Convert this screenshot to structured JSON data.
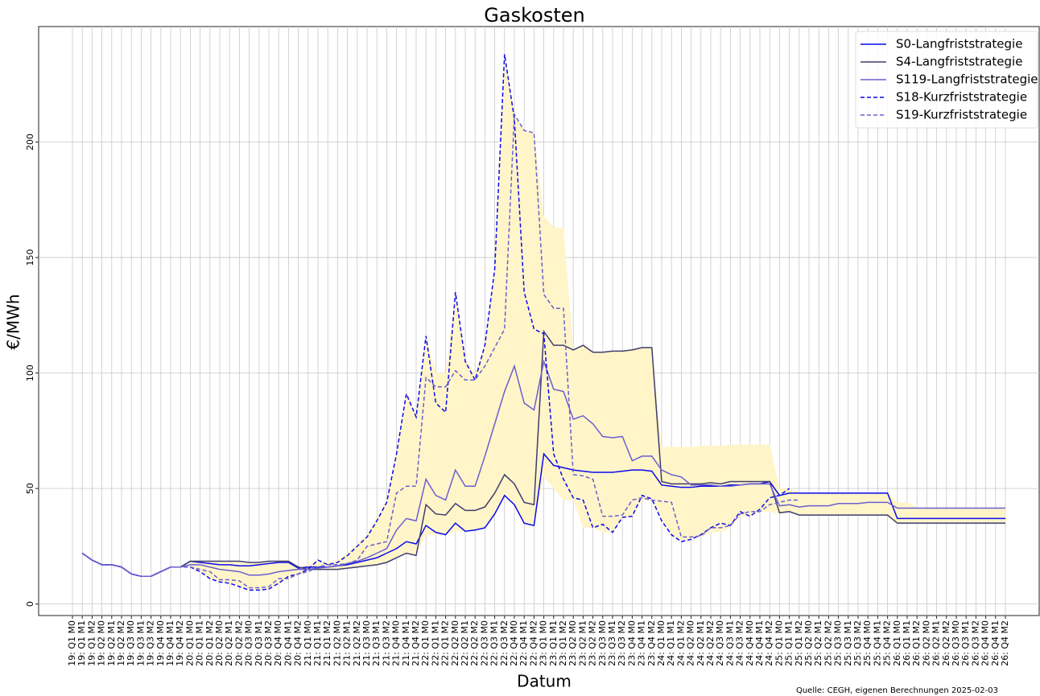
{
  "chart_data": {
    "type": "line",
    "title": "Gaskosten",
    "x_label": "Datum",
    "y_label": "€/MWh",
    "source": "Quelle: CEGH, eigenen Berechnungen 2025-02-03",
    "legend": "upper right",
    "grid": true,
    "ylim": [
      -5,
      250
    ],
    "yticks": [
      0,
      50,
      100,
      150,
      200
    ],
    "categories": [
      "19: Q1 M0",
      "19: Q1 M1",
      "19: Q1 M2",
      "19: Q2 M0",
      "19: Q2 M1",
      "19: Q2 M2",
      "19: Q3 M0",
      "19: Q3 M1",
      "19: Q3 M2",
      "19: Q4 M0",
      "19: Q4 M1",
      "19: Q4 M2",
      "20: Q1 M0",
      "20: Q1 M1",
      "20: Q1 M2",
      "20: Q2 M0",
      "20: Q2 M1",
      "20: Q2 M2",
      "20: Q3 M0",
      "20: Q3 M1",
      "20: Q3 M2",
      "20: Q4 M0",
      "20: Q4 M1",
      "20: Q4 M2",
      "21: Q1 M0",
      "21: Q1 M1",
      "21: Q1 M2",
      "21: Q2 M0",
      "21: Q2 M1",
      "21: Q2 M2",
      "21: Q3 M0",
      "21: Q3 M1",
      "21: Q3 M2",
      "21: Q4 M0",
      "21: Q4 M1",
      "21: Q4 M2",
      "22: Q1 M0",
      "22: Q1 M1",
      "22: Q1 M2",
      "22: Q2 M0",
      "22: Q2 M1",
      "22: Q2 M2",
      "22: Q3 M0",
      "22: Q3 M1",
      "22: Q3 M2",
      "22: Q4 M0",
      "22: Q4 M1",
      "22: Q4 M2",
      "23: Q1 M0",
      "23: Q1 M1",
      "23: Q1 M2",
      "23: Q2 M0",
      "23: Q2 M1",
      "23: Q2 M2",
      "23: Q3 M0",
      "23: Q3 M1",
      "23: Q3 M2",
      "23: Q4 M0",
      "23: Q4 M1",
      "23: Q4 M2",
      "24: Q1 M0",
      "24: Q1 M1",
      "24: Q1 M2",
      "24: Q2 M0",
      "24: Q2 M1",
      "24: Q2 M2",
      "24: Q3 M0",
      "24: Q3 M1",
      "24: Q3 M2",
      "24: Q4 M0",
      "24: Q4 M1",
      "24: Q4 M2",
      "25: Q1 M0",
      "25: Q1 M1",
      "25: Q1 M2",
      "25: Q2 M0",
      "25: Q2 M1",
      "25: Q2 M2",
      "25: Q3 M0",
      "25: Q3 M1",
      "25: Q3 M2",
      "25: Q4 M0",
      "25: Q4 M1",
      "25: Q4 M2",
      "26: Q1 M0",
      "26: Q1 M1",
      "26: Q1 M2",
      "26: Q2 M0",
      "26: Q2 M1",
      "26: Q2 M2",
      "26: Q3 M0",
      "26: Q3 M1",
      "26: Q3 M2",
      "26: Q4 M0",
      "26: Q4 M1",
      "26: Q4 M2"
    ],
    "band": {
      "color": "#fff5c9",
      "upper": [
        null,
        null,
        null,
        null,
        null,
        null,
        null,
        null,
        null,
        null,
        null,
        null,
        19,
        18.5,
        18.5,
        18.5,
        18.5,
        18,
        18,
        18.5,
        18.5,
        19,
        19,
        16,
        17,
        19,
        18,
        19,
        22,
        26,
        30,
        37,
        45,
        66,
        92,
        82,
        116,
        100,
        100,
        135,
        106,
        100,
        112,
        145,
        238,
        212,
        205,
        204,
        168,
        163,
        163,
        110,
        112,
        109,
        109,
        109.5,
        109.5,
        110,
        111,
        111,
        68,
        68,
        68,
        68,
        68.5,
        68.5,
        68.5,
        69,
        69,
        69,
        69,
        69,
        50,
        50,
        48,
        48,
        48,
        48,
        48,
        48,
        48,
        48,
        48,
        48,
        44,
        44,
        42,
        41.5,
        41.5,
        41.5,
        41.5,
        41.5,
        41.5,
        41.5,
        41.5,
        41.5
      ],
      "lower": [
        null,
        null,
        null,
        null,
        null,
        null,
        null,
        null,
        null,
        null,
        null,
        null,
        16,
        14,
        11,
        9.5,
        9,
        7.5,
        6,
        6,
        6.5,
        9,
        11,
        13,
        14,
        15,
        15,
        15,
        15.5,
        16,
        16.5,
        17,
        18,
        20,
        22,
        21,
        30,
        30,
        30,
        31.5,
        31.5,
        32,
        33,
        39,
        47,
        43,
        35,
        34,
        55,
        50,
        45,
        45,
        33,
        33,
        31,
        31,
        37,
        38,
        45,
        45,
        36,
        30,
        27,
        28,
        29,
        31,
        31,
        33,
        38,
        38,
        40,
        40,
        39,
        40,
        38.5,
        38.5,
        38.5,
        38.5,
        38.5,
        38.5,
        38.5,
        38.5,
        38.5,
        38.5,
        35,
        35,
        35,
        35,
        35,
        35,
        35,
        35,
        35,
        35,
        35,
        35
      ]
    },
    "series": [
      {
        "name": "S0-Langfriststrategie",
        "color": "#0a0aee",
        "dashed": false,
        "values": [
          null,
          22,
          19,
          17,
          17,
          16,
          13,
          12,
          12,
          14,
          16,
          16,
          18.5,
          18,
          17.5,
          17,
          17,
          16.5,
          16.5,
          17,
          17.5,
          18,
          18,
          15.5,
          16,
          16,
          16,
          16.5,
          17,
          18,
          19,
          20,
          22,
          24,
          27,
          26,
          34,
          31,
          30,
          35,
          31.5,
          32,
          33,
          39,
          47,
          43,
          35,
          34,
          65,
          60,
          59,
          58,
          57.5,
          57,
          57,
          57,
          57.5,
          58,
          58,
          57.5,
          51.5,
          51,
          50.5,
          50.5,
          51,
          51,
          51,
          51.5,
          51.5,
          52,
          52,
          53,
          47,
          48,
          48,
          48,
          48,
          48,
          48,
          48,
          48,
          48,
          48,
          48,
          37,
          37,
          37,
          37,
          37,
          37,
          37,
          37,
          37,
          37,
          37,
          37
        ]
      },
      {
        "name": "S4-Langfriststrategie",
        "color": "#3f3d6e",
        "dashed": false,
        "values": [
          null,
          22,
          19,
          17,
          17,
          16,
          13,
          12,
          12,
          14,
          16,
          16,
          18.5,
          18.5,
          18.5,
          18.5,
          18.5,
          18.5,
          18,
          18,
          18.5,
          18.5,
          18.5,
          16,
          15,
          15,
          15,
          15,
          15.5,
          16,
          16.5,
          17,
          18,
          20,
          22,
          21,
          43,
          39,
          38.5,
          43.5,
          40.5,
          40.5,
          42,
          48,
          56,
          52,
          44,
          43,
          118,
          112,
          112,
          110,
          112,
          109,
          109,
          109.5,
          109.5,
          110,
          111,
          111,
          53,
          52,
          52,
          52,
          52,
          52.5,
          52,
          53,
          53,
          53,
          53,
          53,
          39.5,
          40,
          38.5,
          38.5,
          38.5,
          38.5,
          38.5,
          38.5,
          38.5,
          38.5,
          38.5,
          38.5,
          35,
          35,
          35,
          35,
          35,
          35,
          35,
          35,
          35,
          35,
          35,
          35
        ]
      },
      {
        "name": "S119-Langfriststrategie",
        "color": "#6b5fd0",
        "dashed": false,
        "values": [
          null,
          22,
          19,
          17,
          17,
          16,
          13,
          12,
          12,
          14,
          16,
          16,
          17,
          17,
          16,
          15,
          14.5,
          14,
          12.5,
          12.5,
          13,
          14,
          14.5,
          15,
          15,
          15.5,
          16,
          16.5,
          17.5,
          18.5,
          20,
          22,
          24,
          32,
          37,
          36,
          54,
          47,
          45,
          58,
          51,
          51,
          64,
          78,
          92,
          103,
          87,
          84,
          105,
          93,
          92,
          80,
          81.5,
          78,
          72.5,
          72,
          72.5,
          62,
          64,
          64,
          58,
          56,
          55,
          51.5,
          51.5,
          51.5,
          51,
          51,
          51.5,
          52,
          52,
          52,
          42.5,
          43,
          42,
          42.5,
          42.5,
          42.5,
          43.5,
          43.5,
          43.5,
          44,
          44,
          44,
          41.5,
          41.5,
          41.5,
          41.5,
          41.5,
          41.5,
          41.5,
          41.5,
          41.5,
          41.5,
          41.5,
          41.5
        ]
      },
      {
        "name": "S18-Kurzfriststrategie",
        "color": "#0a0aee",
        "dashed": true,
        "values": [
          null,
          22,
          19,
          17,
          17,
          16,
          13,
          12,
          12,
          14,
          16,
          16,
          16,
          14,
          11,
          9.5,
          9,
          7.5,
          6,
          6,
          6.5,
          9,
          12,
          13,
          15,
          19,
          17,
          18,
          21,
          25,
          29,
          36,
          44,
          65,
          91,
          81,
          116,
          87,
          83,
          135,
          105,
          97,
          112,
          145,
          238,
          210,
          135,
          119,
          117,
          65,
          54,
          46,
          45,
          33,
          34.5,
          31,
          37.5,
          38,
          47,
          45.5,
          36,
          30,
          27,
          28,
          30,
          33,
          35,
          34,
          40,
          38,
          41,
          46,
          47,
          50,
          null,
          null,
          null,
          null,
          null,
          null,
          null,
          null,
          null,
          null,
          null,
          null,
          null,
          null,
          null,
          null,
          null,
          null,
          null,
          null,
          null,
          null
        ]
      },
      {
        "name": "S19-Kurzfriststrategie",
        "color": "#6b5fd0",
        "dashed": true,
        "values": [
          null,
          22,
          19,
          17,
          17,
          16,
          13,
          12,
          12,
          14,
          16,
          16,
          16,
          15,
          14,
          10.5,
          10.5,
          10,
          7,
          7,
          7.5,
          11,
          11,
          13,
          14,
          16,
          17,
          17,
          17.5,
          19,
          25,
          26,
          27,
          48,
          51,
          51,
          98,
          94,
          94,
          101,
          97,
          97,
          103,
          111,
          119,
          212,
          205,
          204,
          134,
          128,
          128,
          56,
          55.5,
          54,
          38,
          38,
          38.5,
          45,
          46,
          45,
          44.5,
          44,
          29,
          29,
          29.5,
          33,
          33,
          34,
          39,
          40,
          40,
          43,
          44,
          45,
          45,
          null,
          null,
          null,
          null,
          null,
          null,
          null,
          null,
          null,
          null,
          null,
          null,
          null,
          null,
          null,
          null,
          null,
          null,
          null,
          null,
          null
        ]
      }
    ]
  }
}
